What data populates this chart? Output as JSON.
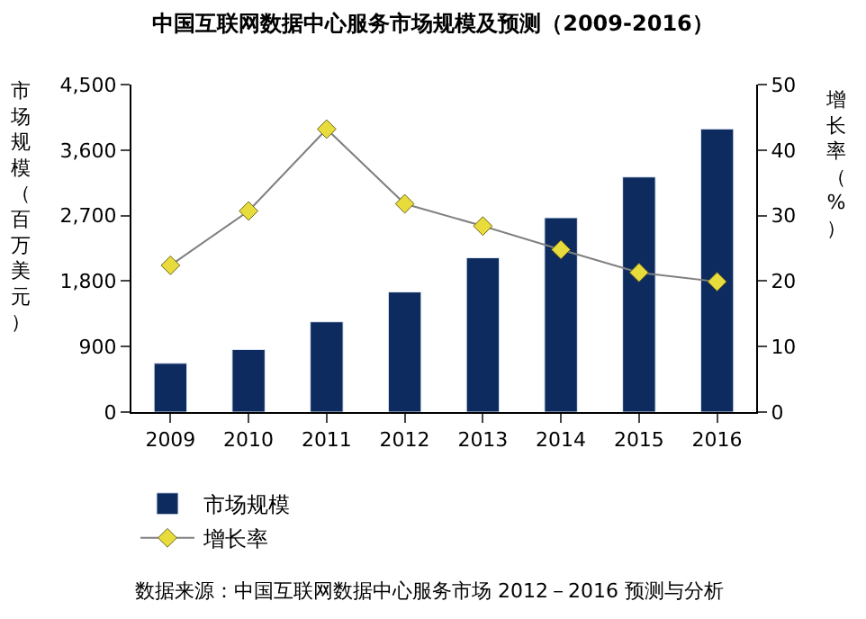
{
  "chart_data": {
    "type": "bar",
    "title": "中国互联网数据中心服务市场规模及预测（2009-2016）",
    "categories": [
      "2009",
      "2010",
      "2011",
      "2012",
      "2013",
      "2014",
      "2015",
      "2016"
    ],
    "series": [
      {
        "name": "市场规模",
        "color": "#0d2b5e",
        "values": [
          670,
          860,
          1240,
          1650,
          2120,
          2670,
          3230,
          3890
        ]
      },
      {
        "name": "增长率",
        "type": "line",
        "axis": "y2",
        "color": "#e8dc3c",
        "values": [
          22.4,
          30.7,
          43.2,
          31.8,
          28.4,
          24.8,
          21.3,
          19.9
        ]
      }
    ],
    "ylabel": "市场规模（百万美元）",
    "y2label": "增长率（%）",
    "ylim": [
      0,
      4500
    ],
    "yticks": [
      0,
      {
        "value": 900,
        "label": "900"
      },
      {
        "value": 1800,
        "label": "1,800"
      },
      {
        "value": 2700,
        "label": "2,700"
      },
      {
        "value": 3600,
        "label": "3,600"
      },
      {
        "value": 4500,
        "label": "4,500"
      }
    ],
    "y2lim": [
      0,
      50
    ],
    "y2ticks": [
      0,
      10,
      20,
      30,
      40,
      50
    ],
    "marker": "diamond",
    "legend": "bottom left",
    "annotations": [
      "数据来源：中国互联网数据中心服务市场 2012－2016 预测与分析"
    ]
  }
}
